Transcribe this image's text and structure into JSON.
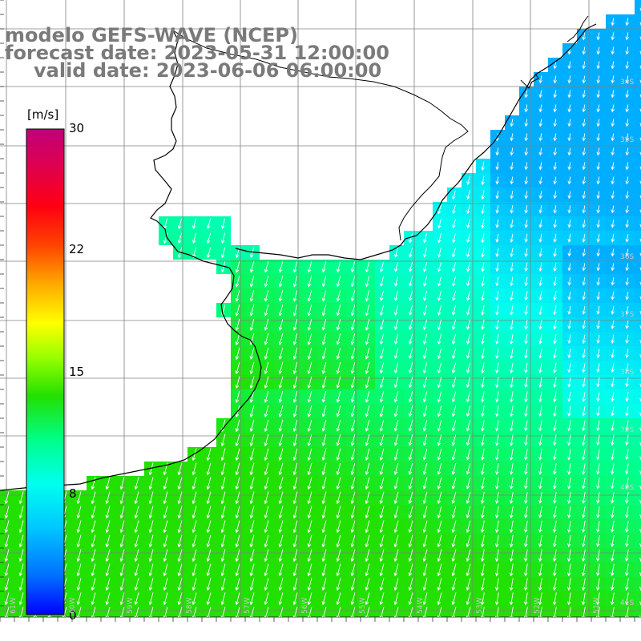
{
  "title": {
    "line1": "modelo GEFS-WAVE (NCEP)",
    "line2": "forecast date: 2023-05-31 12:00:00",
    "line3": "valid date: 2023-06-06 06:00:00"
  },
  "colorbar": {
    "unit": "[m/s]",
    "ticks": [
      "30",
      "22",
      "15",
      "8",
      "0"
    ],
    "tick_values": [
      30,
      22,
      15,
      8,
      0
    ],
    "range": [
      0,
      30
    ],
    "colors": [
      "#0000ff",
      "#0078ff",
      "#00d8ff",
      "#00ffcc",
      "#00ff44",
      "#22e000",
      "#88ff00",
      "#ffff00",
      "#ff9900",
      "#ff2200",
      "#ee0033",
      "#cc0066",
      "#c0007a"
    ]
  },
  "map": {
    "lat_labels": [
      "34S",
      "35S",
      "36S",
      "37S",
      "38S",
      "39S",
      "40S",
      "41S"
    ],
    "lon_labels": [
      "61W",
      "60W",
      "59W",
      "58W",
      "57W",
      "56W",
      "55W",
      "54W",
      "53W",
      "52W",
      "51W"
    ],
    "wind_direction": "from north",
    "land_color": "#ffffff",
    "coast_color": "#000000",
    "grid_color": "#808080"
  }
}
